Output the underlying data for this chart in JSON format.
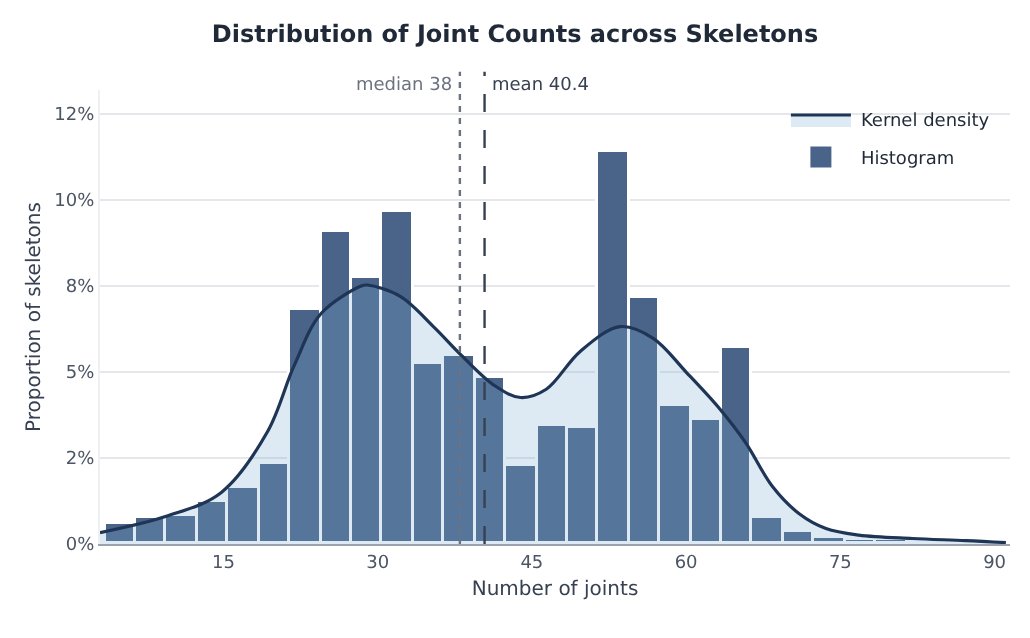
{
  "chart_data": {
    "type": "histogram",
    "title": "Distribution of Joint Counts across Skeletons",
    "xlabel": "Number of joints",
    "ylabel": "Proportion of skeletons",
    "bins": [
      3.5,
      6.5,
      9.5,
      12.5,
      15.5,
      18.5,
      21.5,
      24.5,
      27.5,
      30.5,
      33.5,
      36.5,
      39.5,
      42.5,
      45.5,
      48.5,
      51.5,
      54.5,
      57.5,
      60.5,
      63.5,
      66.5,
      69.5,
      72.5,
      75.5,
      78.5,
      81.5,
      84.5,
      87.5,
      90.5
    ],
    "series": [
      {
        "name": "Kernel density",
        "type": "area",
        "color": "#1f3556",
        "x": [
          3,
          9.6,
          14.8,
          19.3,
          21.9,
          24.5,
          28.4,
          29,
          32.2,
          35.5,
          38.1,
          41.4,
          43.9,
          46.4,
          49.7,
          53.6,
          56.8,
          60,
          63.3,
          65.8,
          68.4,
          71,
          73.6,
          76.8,
          82,
          87.2,
          91.1
        ],
        "values": [
          0.33,
          0.82,
          1.5,
          3.27,
          5.2,
          6.7,
          7.5,
          7.53,
          7.2,
          6.3,
          5.5,
          4.6,
          4.26,
          4.5,
          5.6,
          6.32,
          5.98,
          5.0,
          3.92,
          2.94,
          1.67,
          0.88,
          0.45,
          0.26,
          0.16,
          0.1,
          0.04
        ]
      },
      {
        "name": "Histogram",
        "color": "#4a6389",
        "values": [
          0.59,
          0.74,
          0.82,
          1.21,
          1.64,
          2.35,
          6.79,
          9.05,
          7.75,
          9.68,
          5.24,
          5.44,
          4.85,
          2.26,
          3.43,
          3.35,
          11.42,
          7.16,
          4.02,
          3.61,
          5.69,
          0.73,
          0.33,
          0.16,
          0.12,
          0.1,
          0.08,
          0.06,
          0.04
        ]
      }
    ],
    "ref_lines": [
      {
        "axis": "x",
        "value": 38,
        "label": "median 38",
        "color": "#6b7280",
        "line_style": "dotted"
      },
      {
        "axis": "x",
        "value": 40.4,
        "label": "mean 40.4",
        "color": "#374151",
        "line_style": "dashed"
      }
    ],
    "xlim": [
      3,
      91.5
    ],
    "xticks": [
      15,
      30,
      45,
      60,
      75,
      90
    ],
    "ylim": [
      0,
      13.2
    ],
    "yticks": [
      {
        "value": 0,
        "label": "0%"
      },
      {
        "value": 2.5,
        "label": "2%"
      },
      {
        "value": 5,
        "label": "5%"
      },
      {
        "value": 7.5,
        "label": "8%"
      },
      {
        "value": 10,
        "label": "10%"
      },
      {
        "value": 12.5,
        "label": "12%"
      }
    ],
    "grid": "y",
    "legend": "top right"
  }
}
